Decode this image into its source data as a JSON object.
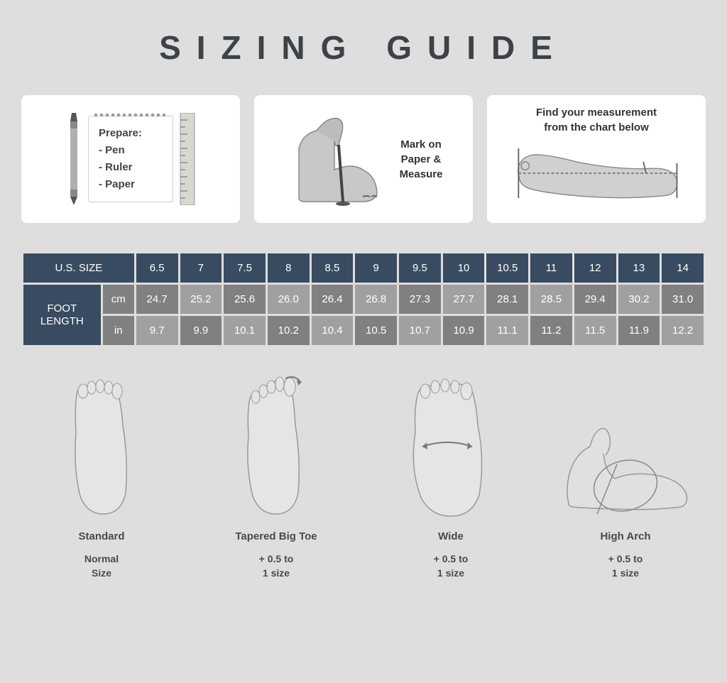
{
  "title": "SIZING  GUIDE",
  "colors": {
    "page_bg": "#dedede",
    "card_bg": "#ffffff",
    "title_color": "#3d4248",
    "table_header_bg": "#384b60",
    "table_dark_cell": "#808080",
    "table_light_cell": "#a0a0a0",
    "table_text": "#ffffff",
    "body_text": "#4a4a4a"
  },
  "steps": {
    "prepare": {
      "heading": "Prepare:",
      "items": [
        "- Pen",
        "- Ruler",
        "- Paper"
      ]
    },
    "mark": {
      "text": "Mark on\nPaper &\nMeasure"
    },
    "find": {
      "text": "Find your measurement\nfrom the chart below"
    }
  },
  "table": {
    "size_header": "U.S. SIZE",
    "length_header": "FOOT\nLENGTH",
    "units": [
      "cm",
      "in"
    ],
    "sizes": [
      "6.5",
      "7",
      "7.5",
      "8",
      "8.5",
      "9",
      "9.5",
      "10",
      "10.5",
      "11",
      "12",
      "13",
      "14"
    ],
    "cm": [
      "24.7",
      "25.2",
      "25.6",
      "26.0",
      "26.4",
      "26.8",
      "27.3",
      "27.7",
      "28.1",
      "28.5",
      "29.4",
      "30.2",
      "31.0"
    ],
    "in": [
      "9.7",
      "9.9",
      "10.1",
      "10.2",
      "10.4",
      "10.5",
      "10.7",
      "10.9",
      "11.1",
      "11.2",
      "11.5",
      "11.9",
      "12.2"
    ]
  },
  "foot_types": [
    {
      "name": "Standard",
      "rec": "Normal\nSize"
    },
    {
      "name": "Tapered Big Toe",
      "rec": "+ 0.5 to\n1 size"
    },
    {
      "name": "Wide",
      "rec": "+ 0.5 to\n1 size"
    },
    {
      "name": "High Arch",
      "rec": "+ 0.5 to\n1 size"
    }
  ]
}
